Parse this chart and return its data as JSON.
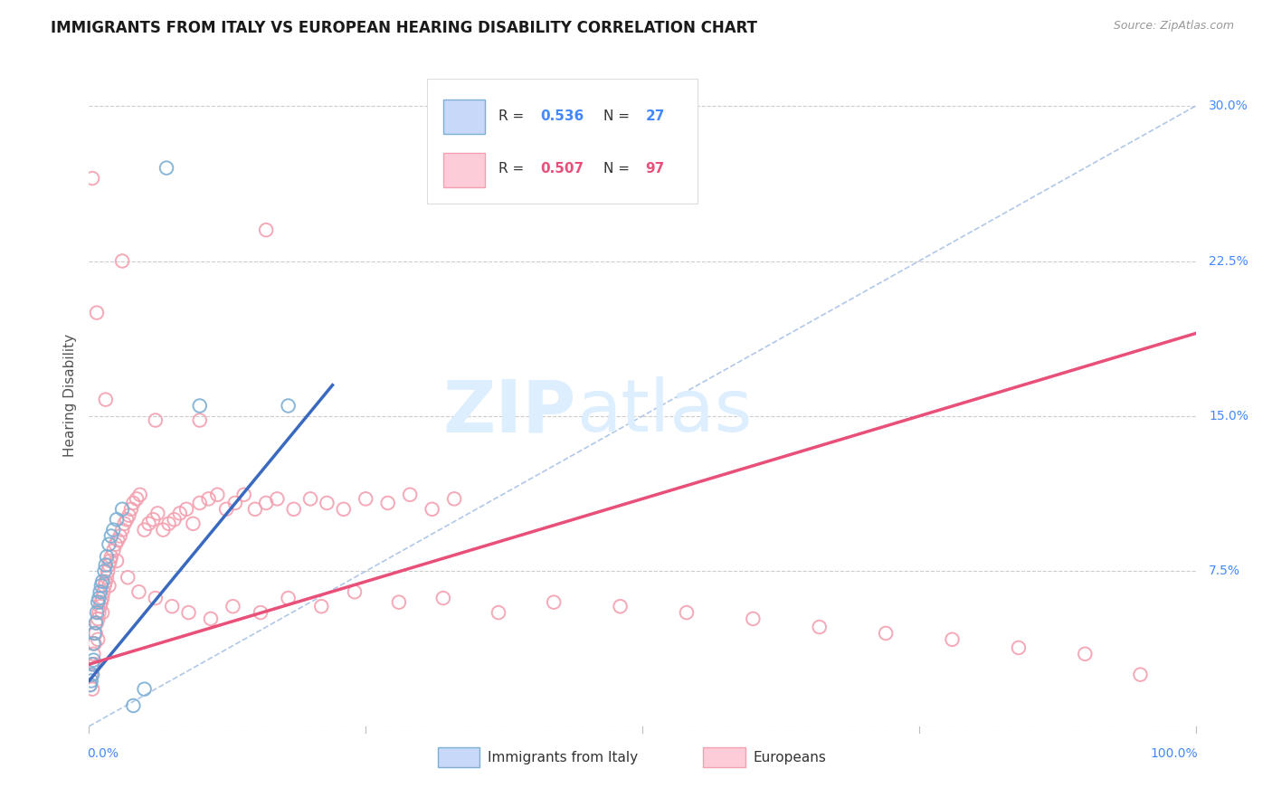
{
  "title": "IMMIGRANTS FROM ITALY VS EUROPEAN HEARING DISABILITY CORRELATION CHART",
  "source": "Source: ZipAtlas.com",
  "ylabel": "Hearing Disability",
  "yticks": [
    0.0,
    0.075,
    0.15,
    0.225,
    0.3
  ],
  "ytick_labels": [
    "",
    "7.5%",
    "15.0%",
    "22.5%",
    "30.0%"
  ],
  "xlim": [
    0.0,
    1.0
  ],
  "ylim": [
    0.0,
    0.32
  ],
  "italy_R": 0.536,
  "italy_N": 27,
  "european_R": 0.507,
  "european_N": 97,
  "italy_color": "#7bafd4",
  "european_color": "#f4a0b0",
  "italy_line_color": "#3a6abf",
  "european_line_color": "#e8507a",
  "diagonal_color": "#b0c8e8",
  "grid_color": "#cccccc",
  "background_color": "#ffffff",
  "watermark_zip": "ZIP",
  "watermark_atlas": "atlas",
  "watermark_color": "#ddeeff",
  "legend_italy_R": "R = 0.536",
  "legend_italy_N": "N = 27",
  "legend_euro_R": "R = 0.507",
  "legend_euro_N": "N = 97",
  "italy_x": [
    0.001,
    0.002,
    0.003,
    0.003,
    0.004,
    0.004,
    0.005,
    0.006,
    0.007,
    0.008,
    0.009,
    0.01,
    0.011,
    0.012,
    0.014,
    0.015,
    0.016,
    0.018,
    0.02,
    0.022,
    0.025,
    0.03,
    0.04,
    0.05,
    0.07,
    0.1,
    0.18
  ],
  "italy_y": [
    0.02,
    0.022,
    0.025,
    0.03,
    0.032,
    0.04,
    0.045,
    0.05,
    0.055,
    0.06,
    0.062,
    0.065,
    0.068,
    0.07,
    0.075,
    0.078,
    0.082,
    0.088,
    0.092,
    0.095,
    0.1,
    0.105,
    0.01,
    0.018,
    0.27,
    0.155,
    0.155
  ],
  "european_x": [
    0.001,
    0.002,
    0.003,
    0.004,
    0.005,
    0.006,
    0.007,
    0.008,
    0.009,
    0.01,
    0.011,
    0.012,
    0.013,
    0.014,
    0.015,
    0.016,
    0.017,
    0.018,
    0.019,
    0.02,
    0.022,
    0.024,
    0.026,
    0.028,
    0.03,
    0.032,
    0.034,
    0.036,
    0.038,
    0.04,
    0.043,
    0.046,
    0.05,
    0.054,
    0.058,
    0.062,
    0.067,
    0.072,
    0.077,
    0.082,
    0.088,
    0.094,
    0.1,
    0.108,
    0.116,
    0.124,
    0.132,
    0.14,
    0.15,
    0.16,
    0.17,
    0.185,
    0.2,
    0.215,
    0.23,
    0.25,
    0.27,
    0.29,
    0.31,
    0.33,
    0.003,
    0.005,
    0.008,
    0.012,
    0.018,
    0.025,
    0.035,
    0.045,
    0.06,
    0.075,
    0.09,
    0.11,
    0.13,
    0.155,
    0.18,
    0.21,
    0.24,
    0.28,
    0.32,
    0.37,
    0.42,
    0.48,
    0.54,
    0.6,
    0.66,
    0.72,
    0.78,
    0.84,
    0.9,
    0.95,
    0.003,
    0.007,
    0.015,
    0.03,
    0.06,
    0.1,
    0.16
  ],
  "european_y": [
    0.02,
    0.025,
    0.03,
    0.035,
    0.04,
    0.045,
    0.05,
    0.052,
    0.055,
    0.058,
    0.06,
    0.062,
    0.065,
    0.068,
    0.07,
    0.072,
    0.075,
    0.078,
    0.08,
    0.082,
    0.085,
    0.088,
    0.09,
    0.092,
    0.095,
    0.098,
    0.1,
    0.102,
    0.105,
    0.108,
    0.11,
    0.112,
    0.095,
    0.098,
    0.1,
    0.103,
    0.095,
    0.098,
    0.1,
    0.103,
    0.105,
    0.098,
    0.108,
    0.11,
    0.112,
    0.105,
    0.108,
    0.112,
    0.105,
    0.108,
    0.11,
    0.105,
    0.11,
    0.108,
    0.105,
    0.11,
    0.108,
    0.112,
    0.105,
    0.11,
    0.018,
    0.03,
    0.042,
    0.055,
    0.068,
    0.08,
    0.072,
    0.065,
    0.062,
    0.058,
    0.055,
    0.052,
    0.058,
    0.055,
    0.062,
    0.058,
    0.065,
    0.06,
    0.062,
    0.055,
    0.06,
    0.058,
    0.055,
    0.052,
    0.048,
    0.045,
    0.042,
    0.038,
    0.035,
    0.025,
    0.265,
    0.2,
    0.158,
    0.225,
    0.148,
    0.148,
    0.24
  ]
}
